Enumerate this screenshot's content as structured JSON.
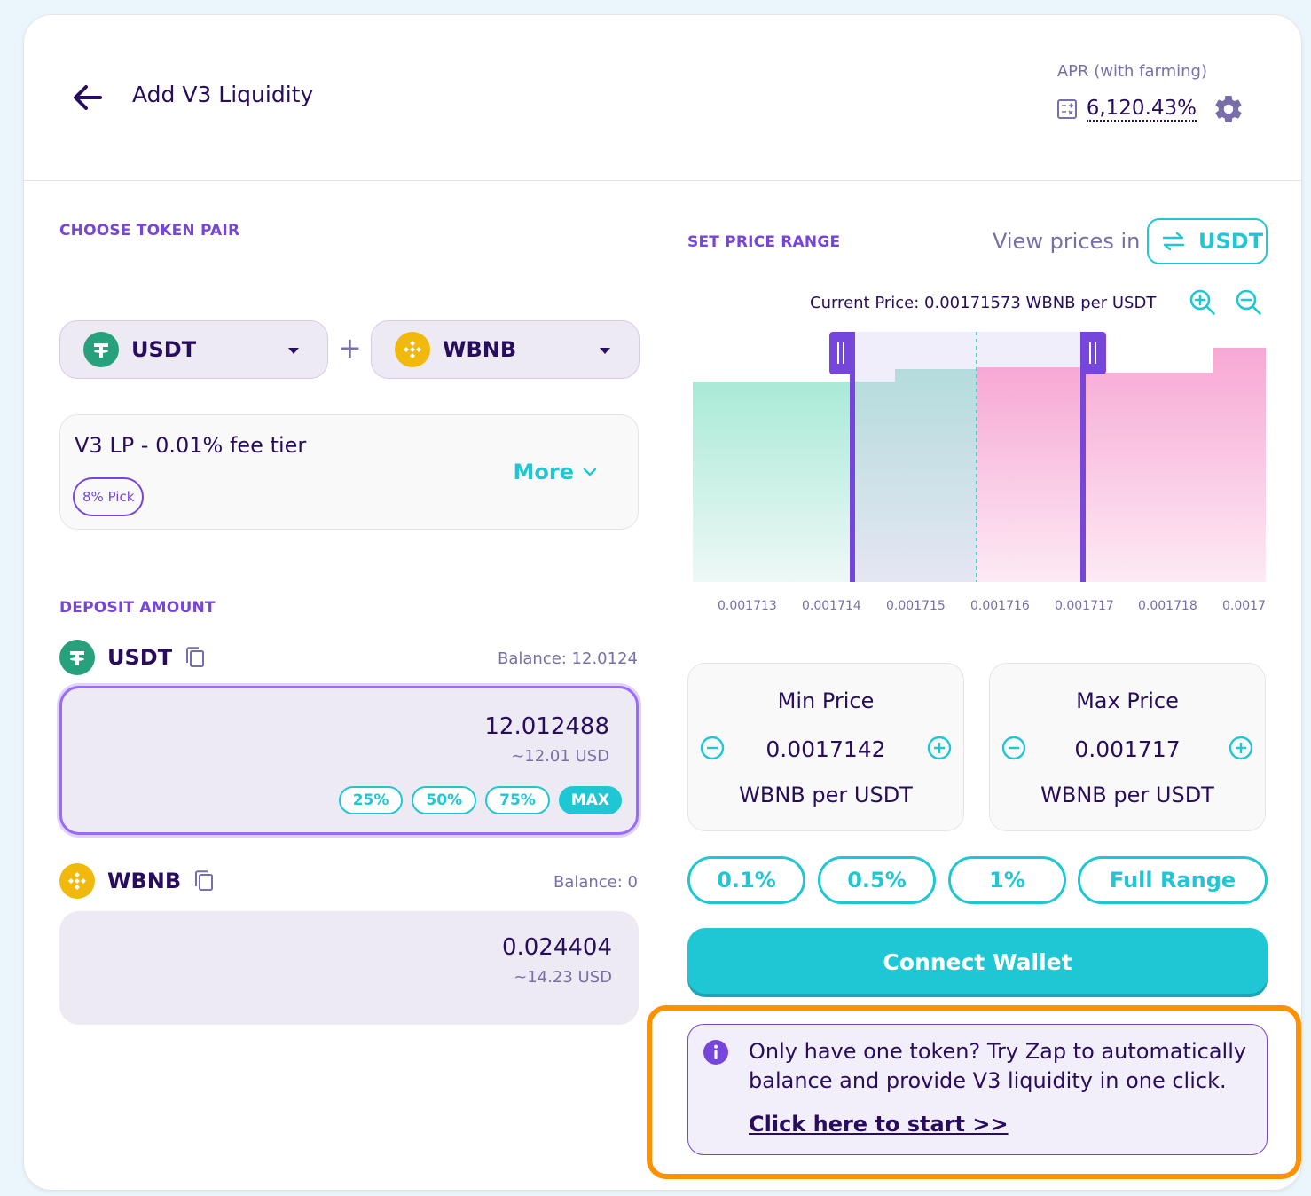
{
  "header": {
    "title": "Add V3 Liquidity",
    "apr_label": "APR (with farming)",
    "apr_value": "6,120.43%"
  },
  "token_pair": {
    "label": "CHOOSE TOKEN PAIR",
    "token_a": "USDT",
    "token_b": "WBNB",
    "plus": "+"
  },
  "fee_tier": {
    "title": "V3 LP - 0.01% fee tier",
    "pick_badge": "8% Pick",
    "more_label": "More"
  },
  "deposit": {
    "label": "DEPOSIT AMOUNT",
    "token_a": {
      "name": "USDT",
      "balance": "Balance: 12.0124",
      "amount": "12.012488",
      "usd": "~12.01 USD",
      "percent_buttons": [
        "25%",
        "50%",
        "75%",
        "MAX"
      ]
    },
    "token_b": {
      "name": "WBNB",
      "balance": "Balance: 0",
      "amount": "0.024404",
      "usd": "~14.23 USD"
    }
  },
  "price_range": {
    "label": "SET PRICE RANGE",
    "view_prices_label": "View prices in",
    "view_prices_unit": "USDT",
    "current_price_label": "Current Price:",
    "current_price_value": "0.00171573 WBNB per USDT",
    "tick_labels": [
      "0.001713",
      "0.001714",
      "0.001715",
      "0.001716",
      "0.001717",
      "0.001718",
      "0.0017"
    ],
    "min_price": {
      "title": "Min Price",
      "value": "0.0017142",
      "unit": "WBNB per USDT"
    },
    "max_price": {
      "title": "Max Price",
      "value": "0.001717",
      "unit": "WBNB per USDT"
    },
    "range_buttons": [
      "0.1%",
      "0.5%",
      "1%",
      "Full Range"
    ]
  },
  "connect_wallet": "Connect Wallet",
  "zap": {
    "text": "Only have one token? Try Zap to automatically balance and provide V3 liquidity in one click.",
    "link": "Click here to start >>"
  },
  "colors": {
    "primary_text": "#280d5f",
    "secondary_text": "#7a6eaa",
    "accent": "#1fc7d4",
    "purple": "#7645d9",
    "highlight": "#ff9100"
  }
}
